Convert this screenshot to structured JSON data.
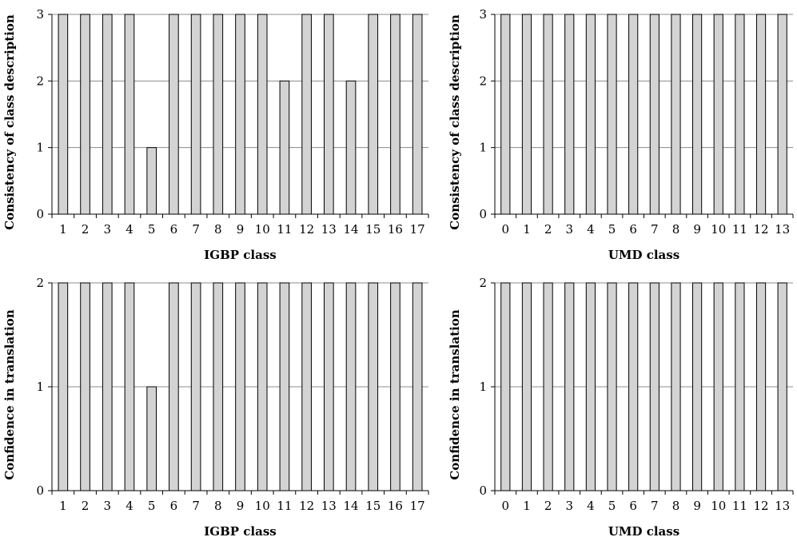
{
  "chart_data": [
    {
      "type": "bar",
      "xlabel": "IGBP class",
      "ylabel": "Consistency of class description",
      "categories": [
        "1",
        "2",
        "3",
        "4",
        "5",
        "6",
        "7",
        "8",
        "9",
        "10",
        "11",
        "12",
        "13",
        "14",
        "15",
        "16",
        "17"
      ],
      "values": [
        3,
        3,
        3,
        3,
        1,
        3,
        3,
        3,
        3,
        3,
        2,
        3,
        3,
        2,
        3,
        3,
        3
      ],
      "ylim": [
        0,
        3
      ],
      "yticks": [
        "0",
        "1",
        "2",
        "3"
      ],
      "grid": true,
      "bar_color": "#d3d3d3"
    },
    {
      "type": "bar",
      "xlabel": "UMD class",
      "ylabel": "Consistency of class description",
      "categories": [
        "0",
        "1",
        "2",
        "3",
        "4",
        "5",
        "6",
        "7",
        "8",
        "9",
        "10",
        "11",
        "12",
        "13"
      ],
      "values": [
        3,
        3,
        3,
        3,
        3,
        3,
        3,
        3,
        3,
        3,
        3,
        3,
        3,
        3
      ],
      "ylim": [
        0,
        3
      ],
      "yticks": [
        "0",
        "1",
        "2",
        "3"
      ],
      "grid": true,
      "bar_color": "#d3d3d3"
    },
    {
      "type": "bar",
      "xlabel": "IGBP class",
      "ylabel": "Confidence in translation",
      "categories": [
        "1",
        "2",
        "3",
        "4",
        "5",
        "6",
        "7",
        "8",
        "9",
        "10",
        "11",
        "12",
        "13",
        "14",
        "15",
        "16",
        "17"
      ],
      "values": [
        2,
        2,
        2,
        2,
        1,
        2,
        2,
        2,
        2,
        2,
        2,
        2,
        2,
        2,
        2,
        2,
        2
      ],
      "ylim": [
        0,
        2
      ],
      "yticks": [
        "0",
        "1",
        "2"
      ],
      "grid": true,
      "bar_color": "#d3d3d3"
    },
    {
      "type": "bar",
      "xlabel": "UMD class",
      "ylabel": "Confidence in translation",
      "categories": [
        "0",
        "1",
        "2",
        "3",
        "4",
        "5",
        "6",
        "7",
        "8",
        "9",
        "10",
        "11",
        "12",
        "13"
      ],
      "values": [
        2,
        2,
        2,
        2,
        2,
        2,
        2,
        2,
        2,
        2,
        2,
        2,
        2,
        2
      ],
      "ylim": [
        0,
        2
      ],
      "yticks": [
        "0",
        "1",
        "2"
      ],
      "grid": true,
      "bar_color": "#d3d3d3"
    }
  ]
}
